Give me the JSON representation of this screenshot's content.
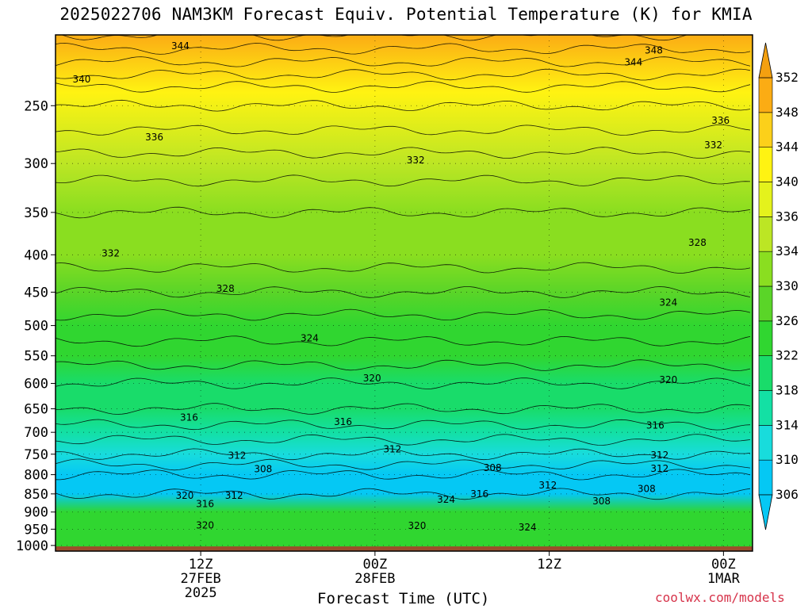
{
  "chart_data": {
    "type": "heatmap",
    "title": "2025022706 NAM3KM Forecast Equiv. Potential Temperature (K) for KMIA",
    "xlabel": "Forecast Time (UTC)",
    "ylabel": "",
    "y_axis": {
      "scale": "log",
      "reversed": true,
      "ticks": [
        250,
        300,
        350,
        400,
        450,
        500,
        550,
        600,
        650,
        700,
        750,
        800,
        850,
        900,
        950,
        1000
      ],
      "range_hPa": [
        200,
        1018
      ]
    },
    "x_axis": {
      "range_hours": [
        -4,
        44
      ],
      "ticks": [
        {
          "hour": 6,
          "lines": [
            "12Z",
            "27FEB",
            "2025"
          ]
        },
        {
          "hour": 18,
          "lines": [
            "00Z",
            "28FEB"
          ]
        },
        {
          "hour": 30,
          "lines": [
            "12Z"
          ]
        },
        {
          "hour": 42,
          "lines": [
            "00Z",
            "1MAR"
          ]
        },
        {
          "hour": 54,
          "lines": [
            "12Z"
          ]
        }
      ]
    },
    "grid": true,
    "colorbar": {
      "levels": [
        306,
        310,
        314,
        318,
        322,
        326,
        330,
        334,
        336,
        340,
        344,
        348,
        352
      ],
      "colors": [
        "#05c8f4",
        "#18dcdc",
        "#13e0a4",
        "#19dc6a",
        "#30d630",
        "#5ad528",
        "#8ade20",
        "#bce624",
        "#e4f21c",
        "#fff312",
        "#fcd01a",
        "#fbac14"
      ],
      "min_arrow_color": "#05c8f4",
      "max_arrow_color": "#f4a010"
    },
    "profile": [
      {
        "p": 200,
        "theta_e": 350
      },
      {
        "p": 240,
        "theta_e": 341
      },
      {
        "p": 300,
        "theta_e": 335
      },
      {
        "p": 350,
        "theta_e": 332
      },
      {
        "p": 400,
        "theta_e": 331
      },
      {
        "p": 450,
        "theta_e": 328
      },
      {
        "p": 500,
        "theta_e": 325
      },
      {
        "p": 550,
        "theta_e": 323
      },
      {
        "p": 600,
        "theta_e": 320
      },
      {
        "p": 650,
        "theta_e": 318
      },
      {
        "p": 700,
        "theta_e": 315
      },
      {
        "p": 750,
        "theta_e": 312
      },
      {
        "p": 800,
        "theta_e": 308
      },
      {
        "p": 850,
        "theta_e": 306
      },
      {
        "p": 900,
        "theta_e": 322
      },
      {
        "p": 950,
        "theta_e": 323
      },
      {
        "p": 1005,
        "theta_e": 322
      }
    ],
    "contour_labels": [
      {
        "text": "344",
        "hour": 4.6,
        "p": 207
      },
      {
        "text": "348",
        "hour": 37.2,
        "p": 210
      },
      {
        "text": "344",
        "hour": 35.8,
        "p": 218
      },
      {
        "text": "340",
        "hour": -2.2,
        "p": 230
      },
      {
        "text": "336",
        "hour": 41.8,
        "p": 262
      },
      {
        "text": "336",
        "hour": 2.8,
        "p": 276
      },
      {
        "text": "332",
        "hour": 41.3,
        "p": 283
      },
      {
        "text": "332",
        "hour": 20.8,
        "p": 297
      },
      {
        "text": "336",
        "hour": -7.5,
        "p": 304
      },
      {
        "text": "328",
        "hour": 40.2,
        "p": 385
      },
      {
        "text": "332",
        "hour": -0.2,
        "p": 398
      },
      {
        "text": "328",
        "hour": 7.7,
        "p": 445
      },
      {
        "text": "324",
        "hour": 38.2,
        "p": 465
      },
      {
        "text": "324",
        "hour": 13.5,
        "p": 520
      },
      {
        "text": "320",
        "hour": 17.8,
        "p": 590
      },
      {
        "text": "320",
        "hour": 38.2,
        "p": 593
      },
      {
        "text": "316",
        "hour": 5.2,
        "p": 668
      },
      {
        "text": "316",
        "hour": 15.8,
        "p": 677
      },
      {
        "text": "316",
        "hour": 37.3,
        "p": 685
      },
      {
        "text": "316",
        "hour": -7.8,
        "p": 748
      },
      {
        "text": "312",
        "hour": 19.2,
        "p": 738
      },
      {
        "text": "312",
        "hour": 8.5,
        "p": 753
      },
      {
        "text": "312",
        "hour": 37.6,
        "p": 752
      },
      {
        "text": "312",
        "hour": 37.6,
        "p": 785
      },
      {
        "text": "308",
        "hour": 10.3,
        "p": 786
      },
      {
        "text": "308",
        "hour": 26.1,
        "p": 783
      },
      {
        "text": "312",
        "hour": -10.5,
        "p": 805
      },
      {
        "text": "324",
        "hour": -8.5,
        "p": 798
      },
      {
        "text": "312",
        "hour": 29.9,
        "p": 827
      },
      {
        "text": "308",
        "hour": 36.7,
        "p": 837
      },
      {
        "text": "316",
        "hour": 25.2,
        "p": 850
      },
      {
        "text": "320",
        "hour": 4.9,
        "p": 855
      },
      {
        "text": "312",
        "hour": 8.3,
        "p": 855
      },
      {
        "text": "324",
        "hour": 22.9,
        "p": 865
      },
      {
        "text": "308",
        "hour": 33.6,
        "p": 870
      },
      {
        "text": "316",
        "hour": 6.3,
        "p": 877
      },
      {
        "text": "320",
        "hour": 6.3,
        "p": 938
      },
      {
        "text": "320",
        "hour": 20.9,
        "p": 940
      },
      {
        "text": "324",
        "hour": 28.5,
        "p": 945
      },
      {
        "text": "320",
        "hour": 48.1,
        "p": 988
      }
    ],
    "ground_below_hPa": 1003,
    "ground_color": "#9c4e2c"
  },
  "watermark": "coolwx.com/models"
}
